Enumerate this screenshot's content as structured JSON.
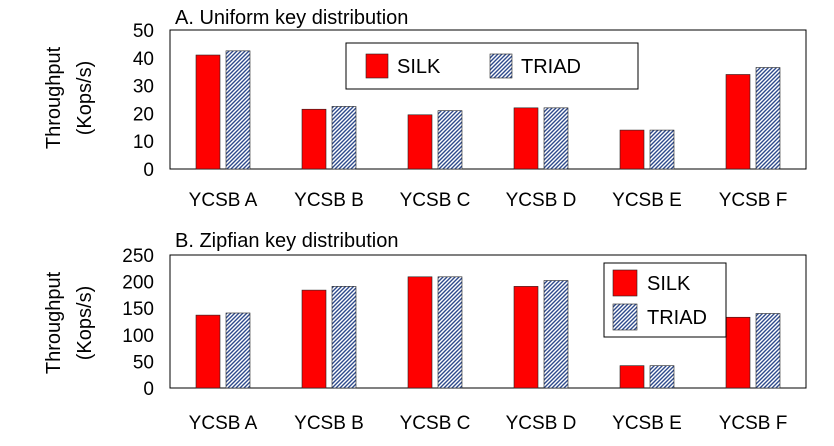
{
  "chart_data": [
    {
      "type": "bar",
      "title": "A. Uniform key distribution",
      "ylabel": [
        "Throughput",
        "(Kops/s)"
      ],
      "xlabel": "",
      "categories": [
        "YCSB A",
        "YCSB B",
        "YCSB C",
        "YCSB D",
        "YCSB E",
        "YCSB F"
      ],
      "series": [
        {
          "name": "SILK",
          "color": "#ff0000",
          "pattern": "solid",
          "values": [
            41,
            21.5,
            19.5,
            22,
            14,
            34
          ]
        },
        {
          "name": "TRIAD",
          "color": "#2e4a8c",
          "pattern": "diagonal-hatch",
          "values": [
            42.5,
            22.5,
            21,
            22,
            14,
            36.5
          ]
        }
      ],
      "ylim": [
        0,
        50
      ],
      "yticks": [
        0,
        10,
        20,
        30,
        40,
        50
      ],
      "grid": false,
      "legend_position": "top-center"
    },
    {
      "type": "bar",
      "title": "B. Zipfian key distribution",
      "ylabel": [
        "Throughput",
        "(Kops/s)"
      ],
      "xlabel": "",
      "categories": [
        "YCSB A",
        "YCSB B",
        "YCSB C",
        "YCSB D",
        "YCSB E",
        "YCSB F"
      ],
      "series": [
        {
          "name": "SILK",
          "color": "#ff0000",
          "pattern": "solid",
          "values": [
            137,
            184,
            209,
            191,
            42,
            133
          ]
        },
        {
          "name": "TRIAD",
          "color": "#2e4a8c",
          "pattern": "diagonal-hatch",
          "values": [
            141,
            191,
            209,
            202,
            42,
            140
          ]
        }
      ],
      "ylim": [
        0,
        250
      ],
      "yticks": [
        0,
        50,
        100,
        150,
        200,
        250
      ],
      "grid": false,
      "legend_position": "top-right"
    }
  ]
}
